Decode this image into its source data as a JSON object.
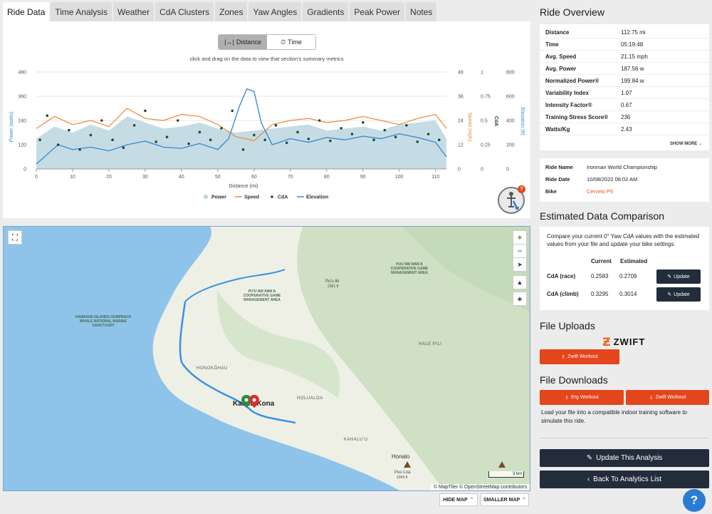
{
  "tabs": [
    {
      "label": "Ride Data",
      "active": true
    },
    {
      "label": "Time Analysis"
    },
    {
      "label": "Weather"
    },
    {
      "label": "CdA Clusters"
    },
    {
      "label": "Zones"
    },
    {
      "label": "Yaw Angles"
    },
    {
      "label": "Gradients"
    },
    {
      "label": "Peak Power"
    },
    {
      "label": "Notes"
    }
  ],
  "chart_toggle": {
    "distance_label": "Distance",
    "time_label": "Time",
    "active": "distance"
  },
  "chart_hint": "click and drag on the data to view that section's summary metrics",
  "chart_data": {
    "type": "line",
    "xlabel": "Distance (mi)",
    "xlim": [
      0,
      113
    ],
    "x_ticks": [
      "0",
      "10",
      "20",
      "30",
      "40",
      "50",
      "60",
      "70",
      "80",
      "90",
      "100",
      "110"
    ],
    "axes": [
      {
        "label": "Power (watts)",
        "ticks": [
          "0",
          "120",
          "240",
          "360",
          "480"
        ],
        "range": [
          0,
          480
        ],
        "color": "#3a8fd6"
      },
      {
        "label": "Speed (mph)",
        "ticks": [
          "0",
          "12",
          "24",
          "36",
          "48"
        ],
        "range": [
          0,
          48
        ],
        "color": "#e9893a"
      },
      {
        "label": "CdA",
        "ticks": [
          "0",
          "0.25",
          "0.5",
          "0.75",
          "1"
        ],
        "range": [
          0,
          1
        ],
        "color": "#1e4a3a"
      },
      {
        "label": "Elevation (ft)",
        "ticks": [
          "0",
          "200",
          "400",
          "600",
          "800"
        ],
        "range": [
          0,
          800
        ],
        "color": "#3a8fd6"
      }
    ],
    "series": [
      {
        "name": "Power",
        "type": "area",
        "color": "#b8d3dd",
        "x": [
          0,
          5,
          10,
          15,
          20,
          25,
          30,
          35,
          40,
          45,
          50,
          55,
          60,
          65,
          70,
          75,
          80,
          85,
          90,
          95,
          100,
          105,
          110,
          113
        ],
        "values": [
          150,
          210,
          180,
          220,
          190,
          260,
          230,
          200,
          210,
          230,
          200,
          180,
          190,
          200,
          210,
          220,
          190,
          200,
          210,
          190,
          220,
          230,
          240,
          150
        ]
      },
      {
        "name": "Speed",
        "type": "line",
        "color": "#e9893a",
        "x": [
          0,
          5,
          10,
          15,
          20,
          25,
          30,
          35,
          40,
          45,
          50,
          55,
          60,
          65,
          70,
          75,
          80,
          85,
          90,
          95,
          100,
          105,
          110,
          113
        ],
        "values": [
          20,
          26,
          22,
          24,
          21,
          30,
          25,
          24,
          27,
          26,
          22,
          16,
          14,
          22,
          24,
          25,
          23,
          24,
          26,
          24,
          22,
          25,
          27,
          20
        ]
      },
      {
        "name": "CdA",
        "type": "scatter",
        "color": "#1e4a3a",
        "x": [
          1,
          3,
          6,
          9,
          12,
          15,
          18,
          21,
          24,
          27,
          30,
          33,
          36,
          39,
          42,
          45,
          48,
          51,
          54,
          57,
          60,
          63,
          66,
          69,
          72,
          75,
          78,
          81,
          84,
          87,
          90,
          93,
          96,
          99,
          102,
          105,
          108,
          111
        ],
        "values": [
          0.3,
          0.55,
          0.25,
          0.4,
          0.2,
          0.35,
          0.5,
          0.3,
          0.22,
          0.45,
          0.6,
          0.28,
          0.33,
          0.5,
          0.26,
          0.38,
          0.3,
          0.42,
          0.6,
          0.2,
          0.35,
          0.3,
          0.45,
          0.27,
          0.38,
          0.31,
          0.5,
          0.29,
          0.42,
          0.36,
          0.48,
          0.3,
          0.4,
          0.33,
          0.45,
          0.28,
          0.36,
          0.3
        ]
      },
      {
        "name": "Elevation",
        "type": "line",
        "color": "#3a8fd6",
        "x": [
          0,
          3,
          6,
          10,
          15,
          20,
          25,
          30,
          35,
          40,
          45,
          50,
          53,
          56,
          58,
          60,
          62,
          65,
          70,
          75,
          80,
          85,
          90,
          95,
          100,
          105,
          110,
          113
        ],
        "values": [
          40,
          120,
          200,
          160,
          180,
          150,
          200,
          230,
          180,
          170,
          210,
          160,
          250,
          520,
          660,
          640,
          380,
          200,
          250,
          220,
          260,
          240,
          270,
          250,
          290,
          260,
          220,
          100
        ]
      }
    ],
    "legend": [
      "Power",
      "Speed",
      "CdA",
      "Elevation"
    ],
    "legend_position": "bottom"
  },
  "map": {
    "labels": {
      "sanctuary": "HAWAIIAN ISLANDS HUMPBACK WHALE NATIONAL MARINE SANCTUARY",
      "puu_waawaa_1": "PUU WA'AWA'A COOPERATIVE GAME MANAGEMENT AREA",
      "puu_waawaa_2": "PU'U WA'AWA'A COOPERATIVE GAME MANAGEMENT AREA",
      "puu_iki": "Pu'u Iki",
      "puu_iki_elev": "2301 ft",
      "honokohau": "HONOKŌHAU",
      "kona": "Kailua-Kona",
      "holualoa": "HOLUALOA",
      "hale_pili": "HALE PILI",
      "kahaluu": "KAHALU'U",
      "honalo": "Honalo",
      "puu_loa": "Puu Loa",
      "puu_loa_elev": "1043 ft"
    },
    "scale": "3 km",
    "attribution": "© MapTiler © OpenStreetMap contributors",
    "hide_map_label": "HIDE MAP",
    "smaller_map_label": "SMALLER MAP"
  },
  "overview": {
    "title": "Ride Overview",
    "stats": [
      {
        "k": "Distance",
        "v": "112.75 mi"
      },
      {
        "k": "Time",
        "v": "05:19:48"
      },
      {
        "k": "Avg. Speed",
        "v": "21.15 mph"
      },
      {
        "k": "Avg. Power",
        "v": "187.56 w"
      },
      {
        "k": "Normalized Power®",
        "v": "199.84 w"
      },
      {
        "k": "Variability Index",
        "v": "1.07"
      },
      {
        "k": "Intensity Factor®",
        "v": "0.67"
      },
      {
        "k": "Training Stress Score®",
        "v": "236"
      },
      {
        "k": "Watts/Kg",
        "v": "2.43"
      }
    ],
    "show_more": "SHOW MORE"
  },
  "ride_info": {
    "name_label": "Ride Name",
    "name": "Ironman World Championship",
    "date_label": "Ride Date",
    "date": "10/08/2022 08:02 AM",
    "bike_label": "Bike",
    "bike": "Cervelo P5"
  },
  "estimated": {
    "title": "Estimated Data Comparison",
    "text": "Compare your current 0° Yaw CdA values with the estimated values from your file and update your bike settings.",
    "col_current": "Current",
    "col_estimated": "Estimated",
    "rows": [
      {
        "name": "CdA (race)",
        "current": "0.2583",
        "estimated": "0.2709"
      },
      {
        "name": "CdA (climb)",
        "current": "0.3295",
        "estimated": "0.3014"
      }
    ],
    "update_label": "Update"
  },
  "uploads": {
    "title": "File Uploads",
    "brand": "ZWIFT",
    "zwift_workout": "Zwift Workout"
  },
  "downloads": {
    "title": "File Downloads",
    "erg_workout": "Erg Workout",
    "zwift_workout": "Zwift Workout",
    "text": "Load your file into a compatible indoor training software to simulate this ride."
  },
  "actions": {
    "update_analysis": "Update This Analysis",
    "back": "Back To Analytics List"
  },
  "help_label": "?"
}
